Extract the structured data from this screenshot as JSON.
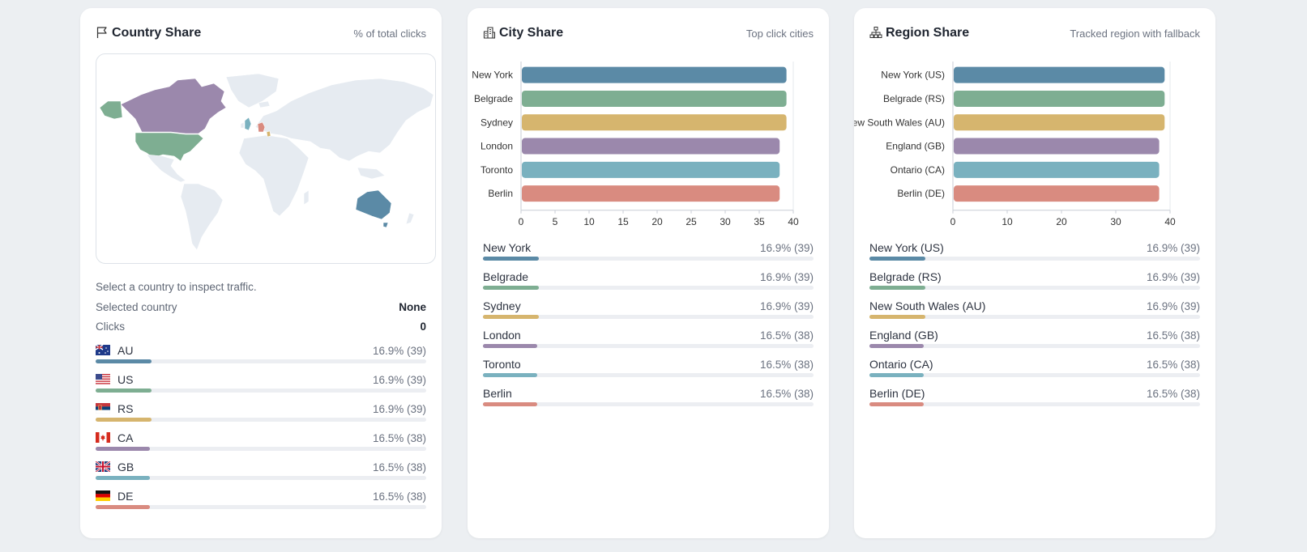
{
  "colors": [
    "#5b8aa6",
    "#7eae92",
    "#d6b56e",
    "#9b88ac",
    "#7ab1bf",
    "#d98b80"
  ],
  "country": {
    "title": "Country Share",
    "subtitle": "% of total clicks",
    "hint": "Select a country to inspect traffic.",
    "selected_label": "Selected country",
    "selected_value": "None",
    "clicks_label": "Clicks",
    "clicks_value": "0",
    "items": [
      {
        "label": "AU",
        "value": "16.9% (39)",
        "fraction": 0.169
      },
      {
        "label": "US",
        "value": "16.9% (39)",
        "fraction": 0.169
      },
      {
        "label": "RS",
        "value": "16.9% (39)",
        "fraction": 0.169
      },
      {
        "label": "CA",
        "value": "16.5% (38)",
        "fraction": 0.165
      },
      {
        "label": "GB",
        "value": "16.5% (38)",
        "fraction": 0.165
      },
      {
        "label": "DE",
        "value": "16.5% (38)",
        "fraction": 0.165
      }
    ]
  },
  "city": {
    "title": "City Share",
    "subtitle": "Top click cities",
    "items": [
      {
        "label": "New York",
        "value": "16.9% (39)",
        "fraction": 0.169
      },
      {
        "label": "Belgrade",
        "value": "16.9% (39)",
        "fraction": 0.169
      },
      {
        "label": "Sydney",
        "value": "16.9% (39)",
        "fraction": 0.169
      },
      {
        "label": "London",
        "value": "16.5% (38)",
        "fraction": 0.165
      },
      {
        "label": "Toronto",
        "value": "16.5% (38)",
        "fraction": 0.165
      },
      {
        "label": "Berlin",
        "value": "16.5% (38)",
        "fraction": 0.165
      }
    ]
  },
  "region": {
    "title": "Region Share",
    "subtitle": "Tracked region with fallback",
    "items": [
      {
        "label": "New York (US)",
        "value": "16.9% (39)",
        "fraction": 0.169
      },
      {
        "label": "Belgrade (RS)",
        "value": "16.9% (39)",
        "fraction": 0.169
      },
      {
        "label": "New South Wales (AU)",
        "value": "16.9% (39)",
        "fraction": 0.169
      },
      {
        "label": "England (GB)",
        "value": "16.5% (38)",
        "fraction": 0.165
      },
      {
        "label": "Ontario (CA)",
        "value": "16.5% (38)",
        "fraction": 0.165
      },
      {
        "label": "Berlin (DE)",
        "value": "16.5% (38)",
        "fraction": 0.165
      }
    ]
  },
  "chart_data": [
    {
      "type": "bar",
      "orientation": "horizontal",
      "categories": [
        "New York",
        "Belgrade",
        "Sydney",
        "London",
        "Toronto",
        "Berlin"
      ],
      "values": [
        39,
        39,
        39,
        38,
        38,
        38
      ],
      "xlim": [
        0,
        40
      ],
      "xticks": [
        0,
        5,
        10,
        15,
        20,
        25,
        30,
        35,
        40
      ],
      "grid": false
    },
    {
      "type": "bar",
      "orientation": "horizontal",
      "categories": [
        "New York (US)",
        "Belgrade (RS)",
        "New South Wales (AU)",
        "England (GB)",
        "Ontario (CA)",
        "Berlin (DE)"
      ],
      "values": [
        39,
        39,
        39,
        38,
        38,
        38
      ],
      "xlim": [
        0,
        40
      ],
      "xticks": [
        0,
        10,
        20,
        30,
        40
      ],
      "grid": false
    }
  ]
}
